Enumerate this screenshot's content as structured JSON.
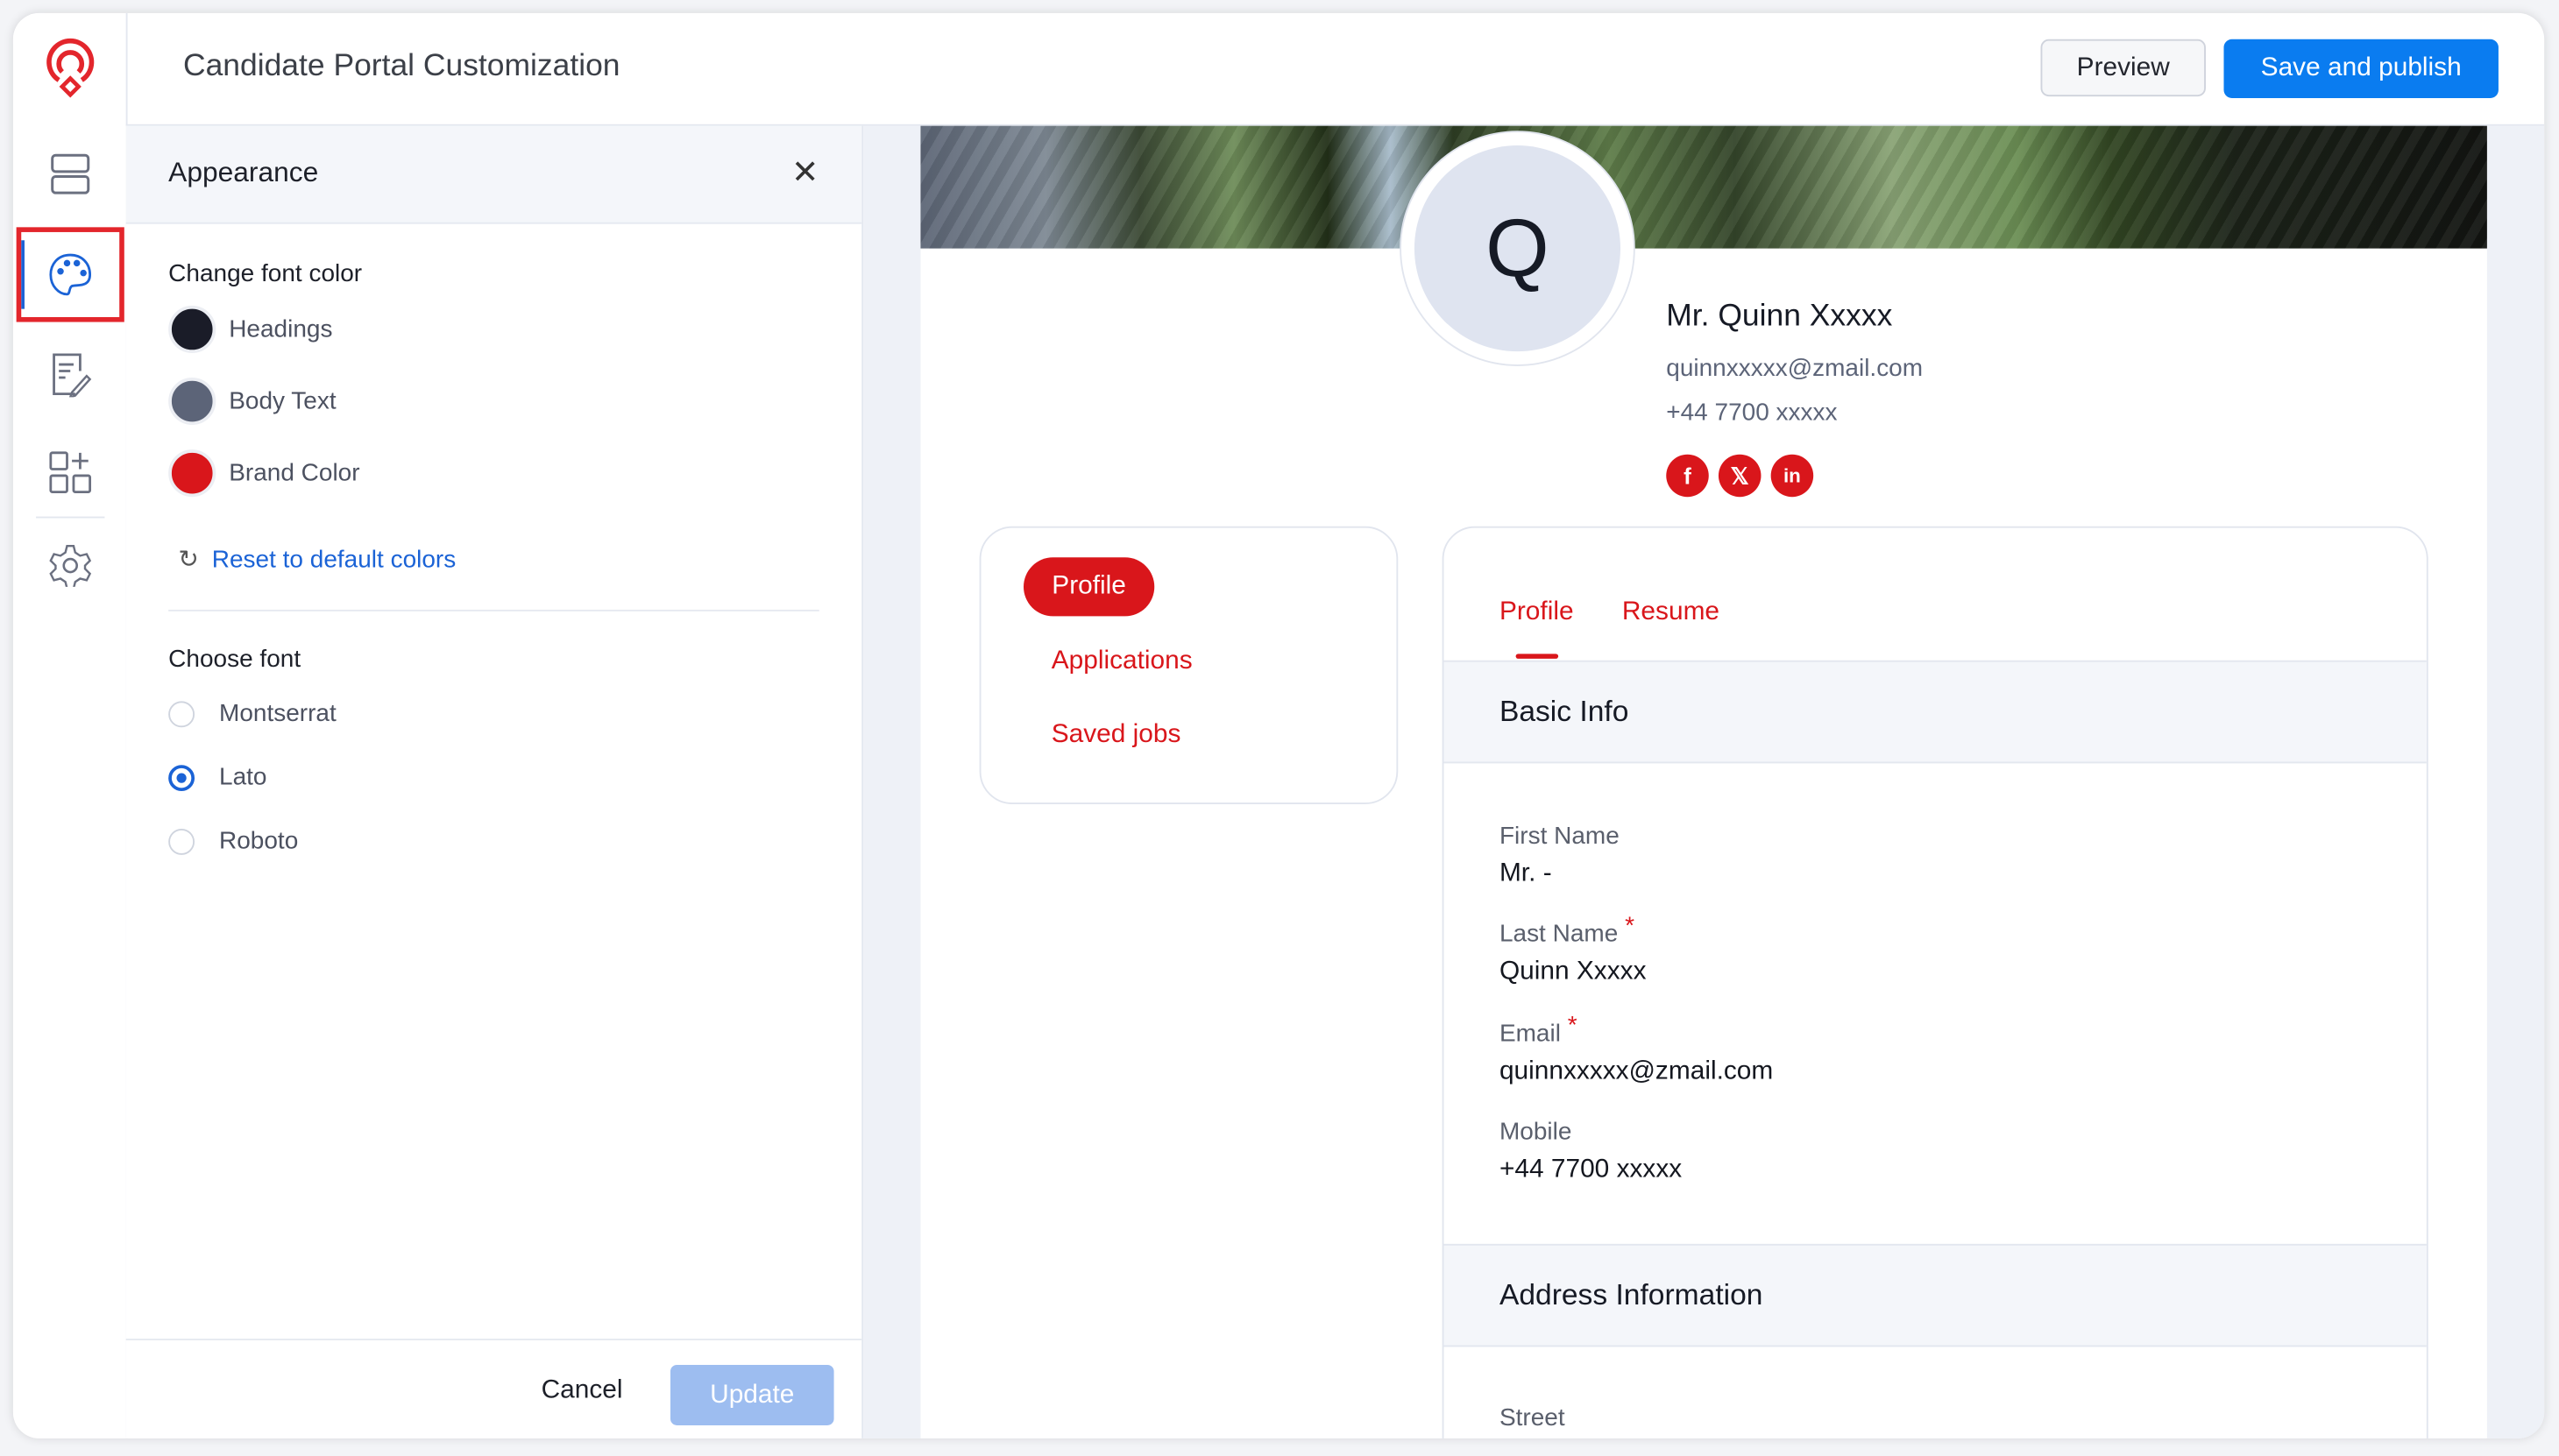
{
  "header": {
    "title": "Candidate Portal Customization",
    "preview_label": "Preview",
    "save_label": "Save and publish",
    "accent": "#0a7cf0"
  },
  "rail": {
    "items": [
      "layout-icon",
      "palette-icon",
      "form-edit-icon",
      "add-widget-icon",
      "settings-icon"
    ],
    "active": "palette-icon"
  },
  "panel": {
    "title": "Appearance",
    "font_color_heading": "Change font color",
    "colors": [
      {
        "label": "Headings",
        "color": "#1a1c28"
      },
      {
        "label": "Body Text",
        "color": "#5c6478"
      },
      {
        "label": "Brand Color",
        "color": "#d9161b"
      }
    ],
    "reset_label": "Reset to default colors",
    "font_heading": "Choose font",
    "fonts": [
      {
        "label": "Montserrat",
        "selected": false
      },
      {
        "label": "Lato",
        "selected": true
      },
      {
        "label": "Roboto",
        "selected": false
      }
    ],
    "cancel_label": "Cancel",
    "update_label": "Update"
  },
  "profile": {
    "initial": "Q",
    "name": "Mr. Quinn Xxxxx",
    "email": "quinnxxxxx@zmail.com",
    "phone": "+44 7700 xxxxx",
    "social": [
      "facebook-icon",
      "x-icon",
      "linkedin-icon"
    ],
    "nav": [
      "Profile",
      "Applications",
      "Saved jobs"
    ],
    "tabs": [
      "Profile",
      "Resume"
    ],
    "basic_info": "Basic Info",
    "fields": [
      {
        "label": "First Name",
        "value": "Mr. -",
        "required": false
      },
      {
        "label": "Last Name",
        "value": "Quinn Xxxxx",
        "required": true
      },
      {
        "label": "Email",
        "value": "quinnxxxxx@zmail.com",
        "required": true
      },
      {
        "label": "Mobile",
        "value": "+44 7700 xxxxx",
        "required": false
      }
    ],
    "address_info": "Address Information",
    "street_label": "Street",
    "required_mark": "*"
  }
}
